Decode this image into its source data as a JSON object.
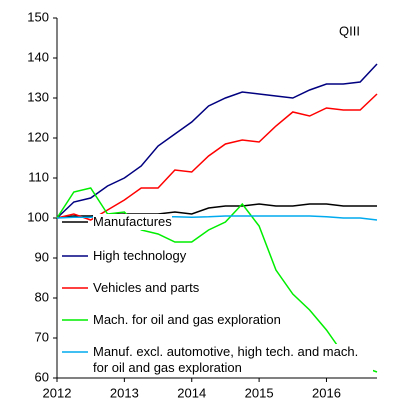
{
  "chart_data": {
    "type": "line",
    "annotation": "QIII",
    "x": [
      2012,
      2012.25,
      2012.5,
      2012.75,
      2013,
      2013.25,
      2013.5,
      2013.75,
      2014,
      2014.25,
      2014.5,
      2014.75,
      2015,
      2015.25,
      2015.5,
      2015.75,
      2016,
      2016.25,
      2016.5,
      2016.75
    ],
    "xlim": [
      2012,
      2016.75
    ],
    "xticks": [
      2012,
      2013,
      2014,
      2015,
      2016
    ],
    "ylim": [
      60,
      150
    ],
    "yticks": [
      60,
      70,
      80,
      90,
      100,
      110,
      120,
      130,
      140,
      150
    ],
    "series": [
      {
        "name": "Manufactures",
        "color": "#000000",
        "values": [
          100,
          100.5,
          100.5,
          100.8,
          101,
          101,
          101,
          101.5,
          101,
          102.5,
          103,
          103,
          103.5,
          103,
          103,
          103.5,
          103.5,
          103,
          103,
          103
        ]
      },
      {
        "name": "High technology",
        "color": "#000080",
        "values": [
          100,
          104,
          105,
          108,
          110,
          113,
          118,
          121,
          124,
          128,
          130,
          131.5,
          131,
          130.5,
          130,
          132,
          133.5,
          133.5,
          134,
          138.5
        ]
      },
      {
        "name": "Vehicles and parts",
        "color": "#ff0000",
        "values": [
          100,
          101,
          99.5,
          102,
          104.5,
          107.5,
          107.5,
          112,
          111.5,
          115.5,
          118.5,
          119.5,
          119,
          123,
          126.5,
          125.5,
          127.5,
          127,
          127,
          131
        ]
      },
      {
        "name": "Mach. for oil and gas exploration",
        "color": "#00ee00",
        "values": [
          100,
          106.5,
          107.5,
          101,
          101.5,
          97,
          96,
          94,
          94,
          97,
          99,
          103.5,
          98,
          87,
          81,
          77,
          72,
          66,
          63,
          61.5
        ]
      },
      {
        "name": "Manuf. excl. automotive, high tech. and mach. for oil and gas exploration",
        "color": "#00aaee",
        "values": [
          100,
          100.2,
          100.2,
          100.5,
          100.5,
          100.5,
          100.3,
          100.3,
          100.2,
          100.3,
          100.5,
          100.5,
          100.5,
          100.5,
          100.5,
          100.5,
          100.3,
          100,
          100,
          99.5
        ]
      }
    ]
  }
}
